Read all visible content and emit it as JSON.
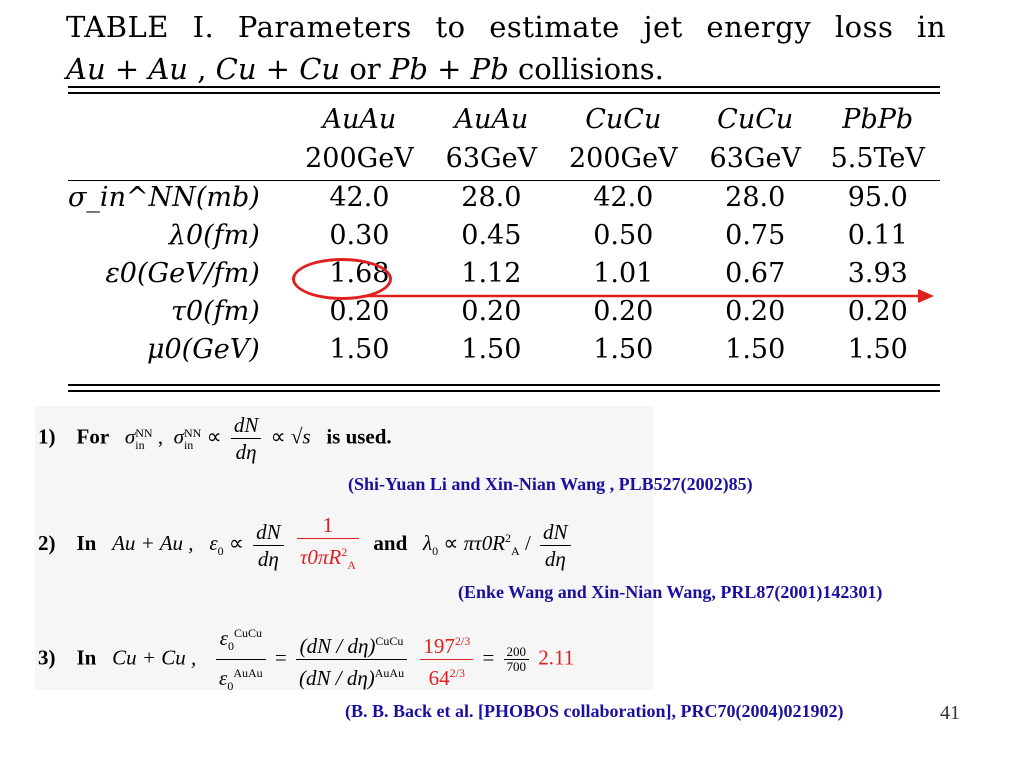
{
  "caption": {
    "line1": "TABLE I.  Parameters to estimate jet energy loss in",
    "line2_a": "Au + Au",
    "line2_b": " , ",
    "line2_c": "Cu + Cu",
    "line2_d": " or ",
    "line2_e": "Pb + Pb",
    "line2_f": " collisions."
  },
  "table": {
    "columns": [
      {
        "system": "AuAu",
        "energy": "200GeV"
      },
      {
        "system": "AuAu",
        "energy": "63GeV"
      },
      {
        "system": "CuCu",
        "energy": "200GeV"
      },
      {
        "system": "CuCu",
        "energy": "63GeV"
      },
      {
        "system": "PbPb",
        "energy": "5.5TeV"
      }
    ],
    "rows": [
      {
        "label": "σ_in^NN(mb)",
        "values": [
          "42.0",
          "28.0",
          "42.0",
          "28.0",
          "95.0"
        ]
      },
      {
        "label": "λ0(fm)",
        "values": [
          "0.30",
          "0.45",
          "0.50",
          "0.75",
          "0.11"
        ]
      },
      {
        "label": "ε0(GeV/fm)",
        "values": [
          "1.68",
          "1.12",
          "1.01",
          "0.67",
          "3.93"
        ]
      },
      {
        "label": "τ0(fm)",
        "values": [
          "0.20",
          "0.20",
          "0.20",
          "0.20",
          "0.20"
        ]
      },
      {
        "label": "μ0(GeV)",
        "values": [
          "1.50",
          "1.50",
          "1.50",
          "1.50",
          "1.50"
        ]
      }
    ]
  },
  "highlight": {
    "color": "#e02020"
  },
  "formulas": {
    "f1": {
      "num": "1)",
      "word": "For",
      "sigma": "σ",
      "nn": "NN",
      "in": "in",
      "comma": ",",
      "prop": "∝",
      "dn": "dN",
      "deta": "dη",
      "sqrt": "√s",
      "tail": "is used."
    },
    "f2": {
      "num": "2)",
      "word": "In",
      "system": "Au + Au ,",
      "eps": "ε",
      "zero": "0",
      "prop": "∝",
      "dn": "dN",
      "deta": "dη",
      "one": "1",
      "den": "τ0πR",
      "a": "A",
      "two": "2",
      "and": "and",
      "lambda": "λ",
      "rhs": "πτ0R",
      "slash": "/"
    },
    "f3": {
      "num": "3)",
      "word": "In",
      "system": "Cu + Cu ,",
      "eps": "ε",
      "zero": "0",
      "cucu": "CuCu",
      "auau": "AuAu",
      "eq": "=",
      "dnde": "(dN / dη)",
      "r197": "197",
      "r64": "64",
      "exp": "2/3",
      "eq2": "=",
      "n200": "200",
      "n700": "700",
      "ratio": "2.11"
    }
  },
  "citations": {
    "c1": "(Shi-Yuan  Li  and  Xin-Nian Wang ,  PLB527(2002)85)",
    "c2": "(Enke Wang and Xin-Nian Wang, PRL87(2001)142301)",
    "c3": "(B. B. Back et al. [PHOBOS collaboration], PRC70(2004)021902)"
  },
  "page_number": "41"
}
